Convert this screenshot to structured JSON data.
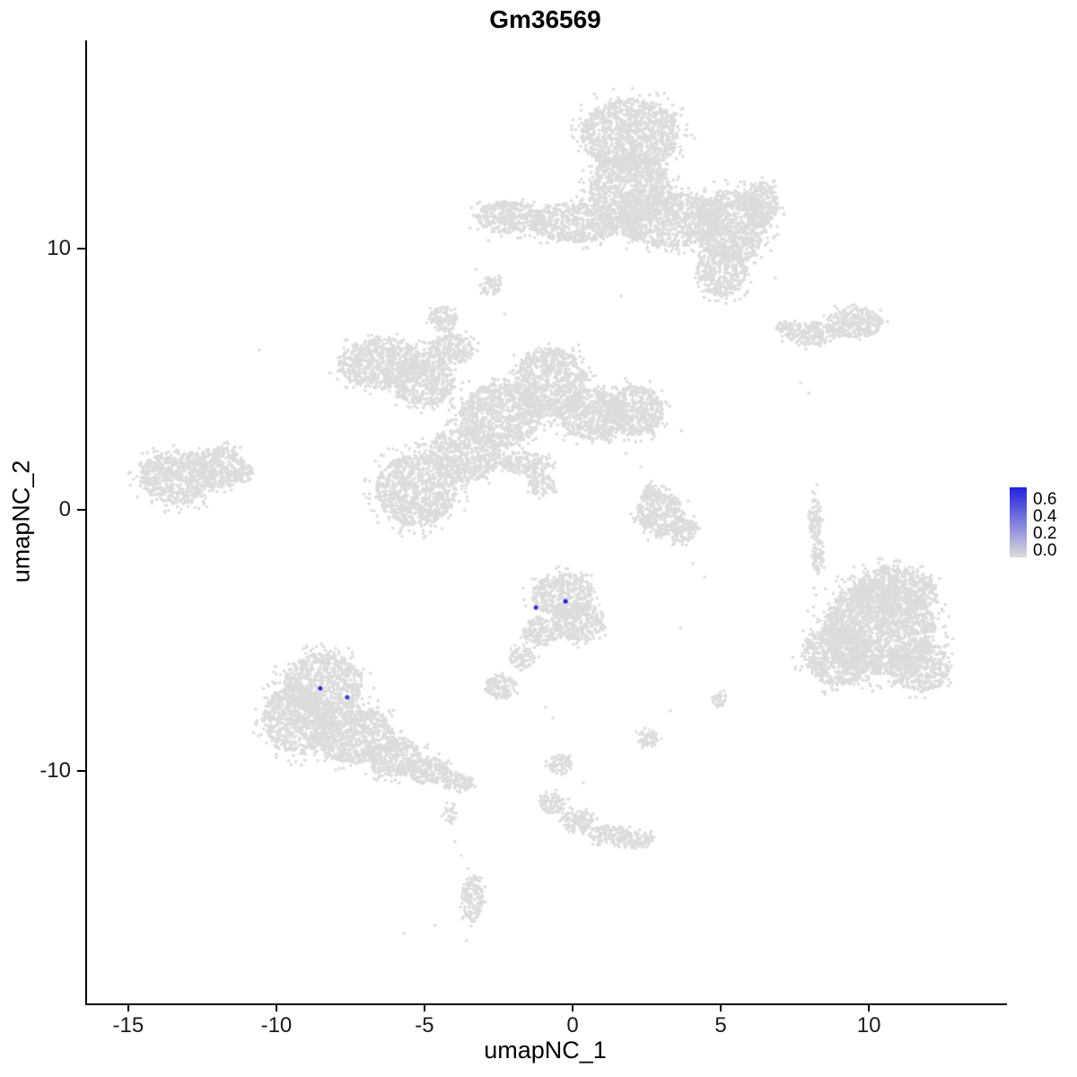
{
  "chart_data": {
    "type": "scatter",
    "title": "Gm36569",
    "xlabel": "umapNC_1",
    "ylabel": "umapNC_2",
    "x_domain": [
      -16.45,
      14.6
    ],
    "y_domain": [
      -18.9,
      17.97
    ],
    "x_ticks": [
      -15,
      -10,
      -5,
      0,
      5,
      10
    ],
    "y_ticks": [
      10,
      0,
      -10
    ],
    "grid": false,
    "legend_position": "right",
    "point_color_low": "#DCDCDC",
    "point_color_high": "#2020E0",
    "legend": {
      "labels": [
        "0.6",
        "0.4",
        "0.2",
        "0.0"
      ],
      "max_value": 0.65
    },
    "background_clusters": [
      {
        "name": "top-center",
        "blobs": [
          {
            "x": 1.88,
            "y": 14.36,
            "rx": 1.67,
            "ry": 1.37
          },
          {
            "x": 1.88,
            "y": 12.3,
            "rx": 1.36,
            "ry": 1.37
          },
          {
            "x": 3.24,
            "y": 11.1,
            "rx": 1.82,
            "ry": 1.03
          },
          {
            "x": 5.27,
            "y": 10.86,
            "rx": 1.21,
            "ry": 1.37
          },
          {
            "x": 4.97,
            "y": 9.14,
            "rx": 0.85,
            "ry": 0.96
          },
          {
            "x": 0.06,
            "y": 11.0,
            "rx": 1.52,
            "ry": 0.76
          },
          {
            "x": -2.21,
            "y": 11.2,
            "rx": 1.15,
            "ry": 0.62
          },
          {
            "x": 6.3,
            "y": 11.68,
            "rx": 0.61,
            "ry": 0.86
          },
          {
            "x": -2.82,
            "y": 8.59,
            "rx": 0.36,
            "ry": 0.34
          }
        ]
      },
      {
        "name": "upper-right-small",
        "blobs": [
          {
            "x": 8.0,
            "y": 6.74,
            "rx": 0.85,
            "ry": 0.45
          },
          {
            "x": 9.45,
            "y": 7.15,
            "rx": 0.97,
            "ry": 0.55
          },
          {
            "x": 7.09,
            "y": 6.94,
            "rx": 0.3,
            "ry": 0.27
          }
        ]
      },
      {
        "name": "center-large",
        "blobs": [
          {
            "x": -6.45,
            "y": 5.6,
            "rx": 1.52,
            "ry": 0.96
          },
          {
            "x": -5.09,
            "y": 4.85,
            "rx": 1.06,
            "ry": 0.86
          },
          {
            "x": -4.18,
            "y": 6.12,
            "rx": 0.76,
            "ry": 0.62
          },
          {
            "x": -4.42,
            "y": 7.29,
            "rx": 0.48,
            "ry": 0.48
          },
          {
            "x": -2.48,
            "y": 3.64,
            "rx": 1.36,
            "ry": 1.2
          },
          {
            "x": -0.79,
            "y": 4.88,
            "rx": 1.21,
            "ry": 1.31
          },
          {
            "x": 0.61,
            "y": 3.64,
            "rx": 1.15,
            "ry": 0.96
          },
          {
            "x": 2.06,
            "y": 3.78,
            "rx": 0.97,
            "ry": 0.96
          },
          {
            "x": -5.33,
            "y": 0.76,
            "rx": 1.36,
            "ry": 1.37
          },
          {
            "x": -3.7,
            "y": 2.13,
            "rx": 1.21,
            "ry": 1.03
          },
          {
            "x": -1.64,
            "y": 1.79,
            "rx": 0.85,
            "ry": 0.41
          },
          {
            "x": -1.12,
            "y": 0.93,
            "rx": 0.45,
            "ry": 0.41
          }
        ]
      },
      {
        "name": "far-left",
        "blobs": [
          {
            "x": -13.39,
            "y": 1.24,
            "rx": 1.27,
            "ry": 1.03
          },
          {
            "x": -11.97,
            "y": 1.65,
            "rx": 0.85,
            "ry": 0.76
          },
          {
            "x": -11.18,
            "y": 1.41,
            "rx": 0.36,
            "ry": 0.34
          }
        ]
      },
      {
        "name": "center-right-small",
        "blobs": [
          {
            "x": 2.88,
            "y": -0.14,
            "rx": 0.79,
            "ry": 0.82
          },
          {
            "x": 3.61,
            "y": -0.76,
            "rx": 0.55,
            "ry": 0.48
          },
          {
            "x": 2.58,
            "y": 0.65,
            "rx": 0.3,
            "ry": 0.34
          }
        ]
      },
      {
        "name": "right-large",
        "blobs": [
          {
            "x": 10.3,
            "y": -4.54,
            "rx": 1.88,
            "ry": 1.79
          },
          {
            "x": 10.82,
            "y": -3.09,
            "rx": 1.45,
            "ry": 0.96
          },
          {
            "x": 8.91,
            "y": -5.57,
            "rx": 1.15,
            "ry": 1.17
          },
          {
            "x": 11.64,
            "y": -5.98,
            "rx": 1.03,
            "ry": 0.96
          },
          {
            "x": 8.12,
            "y": -0.34,
            "rx": 0.21,
            "ry": 0.76
          },
          {
            "x": 8.21,
            "y": -1.72,
            "rx": 0.21,
            "ry": 0.69
          }
        ]
      },
      {
        "name": "center-lower",
        "blobs": [
          {
            "x": -0.39,
            "y": -3.26,
            "rx": 1.03,
            "ry": 0.82
          },
          {
            "x": 0.15,
            "y": -4.3,
            "rx": 0.85,
            "ry": 0.76
          },
          {
            "x": -1.12,
            "y": -4.64,
            "rx": 0.61,
            "ry": 0.55
          },
          {
            "x": -1.76,
            "y": -5.67,
            "rx": 0.42,
            "ry": 0.41
          },
          {
            "x": -2.48,
            "y": -6.8,
            "rx": 0.55,
            "ry": 0.45
          }
        ]
      },
      {
        "name": "lower-left-large",
        "blobs": [
          {
            "x": -8.48,
            "y": -6.67,
            "rx": 1.33,
            "ry": 1.17
          },
          {
            "x": -9.39,
            "y": -8.04,
            "rx": 1.15,
            "ry": 1.31
          },
          {
            "x": -7.45,
            "y": -8.59,
            "rx": 1.33,
            "ry": 1.1
          },
          {
            "x": -6.12,
            "y": -9.45,
            "rx": 0.97,
            "ry": 0.76
          },
          {
            "x": -4.91,
            "y": -9.97,
            "rx": 0.73,
            "ry": 0.52
          },
          {
            "x": -3.94,
            "y": -10.45,
            "rx": 0.55,
            "ry": 0.34
          },
          {
            "x": -4.18,
            "y": -11.62,
            "rx": 0.24,
            "ry": 0.41,
            "density": 0.6
          },
          {
            "x": -3.45,
            "y": -14.85,
            "rx": 0.36,
            "ry": 0.89
          }
        ]
      },
      {
        "name": "bottom-center",
        "blobs": [
          {
            "x": -0.48,
            "y": -9.76,
            "rx": 0.39,
            "ry": 0.38
          },
          {
            "x": -0.73,
            "y": -11.24,
            "rx": 0.42,
            "ry": 0.41
          },
          {
            "x": 0.09,
            "y": -11.92,
            "rx": 0.55,
            "ry": 0.41
          },
          {
            "x": 1.18,
            "y": -12.44,
            "rx": 0.67,
            "ry": 0.38
          },
          {
            "x": 2.09,
            "y": -12.65,
            "rx": 0.55,
            "ry": 0.34
          },
          {
            "x": 2.48,
            "y": -8.76,
            "rx": 0.36,
            "ry": 0.34
          },
          {
            "x": 4.91,
            "y": -7.25,
            "rx": 0.27,
            "ry": 0.27
          }
        ]
      }
    ],
    "sparse_points": [
      [
        -10.64,
        6.12
      ],
      [
        7.64,
        4.85
      ],
      [
        7.91,
        4.47
      ],
      [
        4.0,
        -2.06
      ],
      [
        4.39,
        -2.58
      ],
      [
        8.03,
        0.69
      ],
      [
        8.18,
        0.96
      ],
      [
        -0.97,
        -7.56
      ],
      [
        -0.73,
        -7.97
      ],
      [
        0.3,
        -10.45
      ],
      [
        3.24,
        -7.7
      ],
      [
        -4.03,
        -12.71
      ],
      [
        -3.82,
        -13.23
      ],
      [
        -5.76,
        -16.22
      ],
      [
        -4.7,
        -15.91
      ],
      [
        -3.64,
        -16.49
      ],
      [
        1.73,
        2.16
      ],
      [
        2.24,
        1.65
      ],
      [
        3.61,
        3.02
      ],
      [
        -2.36,
        7.49
      ],
      [
        -3.33,
        9.21
      ],
      [
        6.79,
        8.87
      ],
      [
        1.58,
        8.18
      ],
      [
        8.09,
        -2.99
      ],
      [
        3.58,
        -4.54
      ],
      [
        -2.91,
        10.31
      ],
      [
        5.45,
        8.45
      ]
    ],
    "expressing_cells": [
      {
        "x": -8.58,
        "y": -6.84,
        "value": 0.62
      },
      {
        "x": -7.67,
        "y": -7.18,
        "value": 0.55
      },
      {
        "x": -1.3,
        "y": -3.75,
        "value": 0.6
      },
      {
        "x": -0.3,
        "y": -3.51,
        "value": 0.65
      }
    ]
  }
}
